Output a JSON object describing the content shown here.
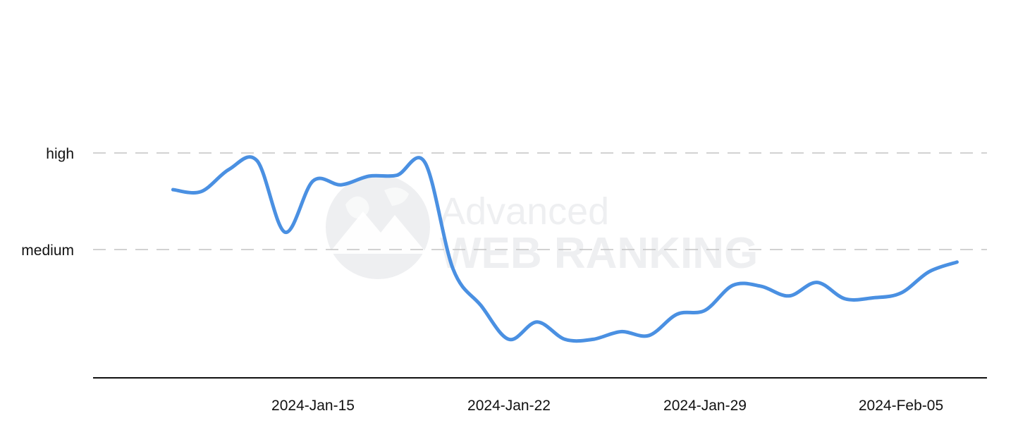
{
  "chart_data": {
    "type": "line",
    "title": "",
    "xlabel": "",
    "ylabel": "",
    "y_categories": [
      "high",
      "medium"
    ],
    "x_ticks": [
      "2024-Jan-15",
      "2024-Jan-22",
      "2024-Jan-29",
      "2024-Feb-05"
    ],
    "x_start": "2024-Jan-10",
    "grid": "dashed horizontal lines at high and medium",
    "series": [
      {
        "name": "",
        "color": "#4a90e2",
        "points": [
          {
            "x": "2024-Jan-10",
            "y": 0.62
          },
          {
            "x": "2024-Jan-11",
            "y": 0.6
          },
          {
            "x": "2024-Jan-12",
            "y": 0.83
          },
          {
            "x": "2024-Jan-13",
            "y": 0.92
          },
          {
            "x": "2024-Jan-14",
            "y": 0.18
          },
          {
            "x": "2024-Jan-15",
            "y": 0.71
          },
          {
            "x": "2024-Jan-16",
            "y": 0.67
          },
          {
            "x": "2024-Jan-17",
            "y": 0.76
          },
          {
            "x": "2024-Jan-18",
            "y": 0.77
          },
          {
            "x": "2024-Jan-19",
            "y": 0.9
          },
          {
            "x": "2024-Jan-20",
            "y": -0.2
          },
          {
            "x": "2024-Jan-21",
            "y": -0.58
          },
          {
            "x": "2024-Jan-22",
            "y": -0.93
          },
          {
            "x": "2024-Jan-23",
            "y": -0.75
          },
          {
            "x": "2024-Jan-24",
            "y": -0.93
          },
          {
            "x": "2024-Jan-25",
            "y": -0.93
          },
          {
            "x": "2024-Jan-26",
            "y": -0.85
          },
          {
            "x": "2024-Jan-27",
            "y": -0.89
          },
          {
            "x": "2024-Jan-28",
            "y": -0.67
          },
          {
            "x": "2024-Jan-29",
            "y": -0.63
          },
          {
            "x": "2024-Jan-30",
            "y": -0.37
          },
          {
            "x": "2024-Jan-31",
            "y": -0.38
          },
          {
            "x": "2024-Feb-01",
            "y": -0.48
          },
          {
            "x": "2024-Feb-02",
            "y": -0.34
          },
          {
            "x": "2024-Feb-03",
            "y": -0.51
          },
          {
            "x": "2024-Feb-04",
            "y": -0.5
          },
          {
            "x": "2024-Feb-05",
            "y": -0.45
          },
          {
            "x": "2024-Feb-06",
            "y": -0.23
          },
          {
            "x": "2024-Feb-07",
            "y": -0.13
          }
        ]
      }
    ]
  },
  "watermark": {
    "line1": "Advanced",
    "line2": "WEB RANKING",
    "icon": "globe-mountain-icon"
  }
}
